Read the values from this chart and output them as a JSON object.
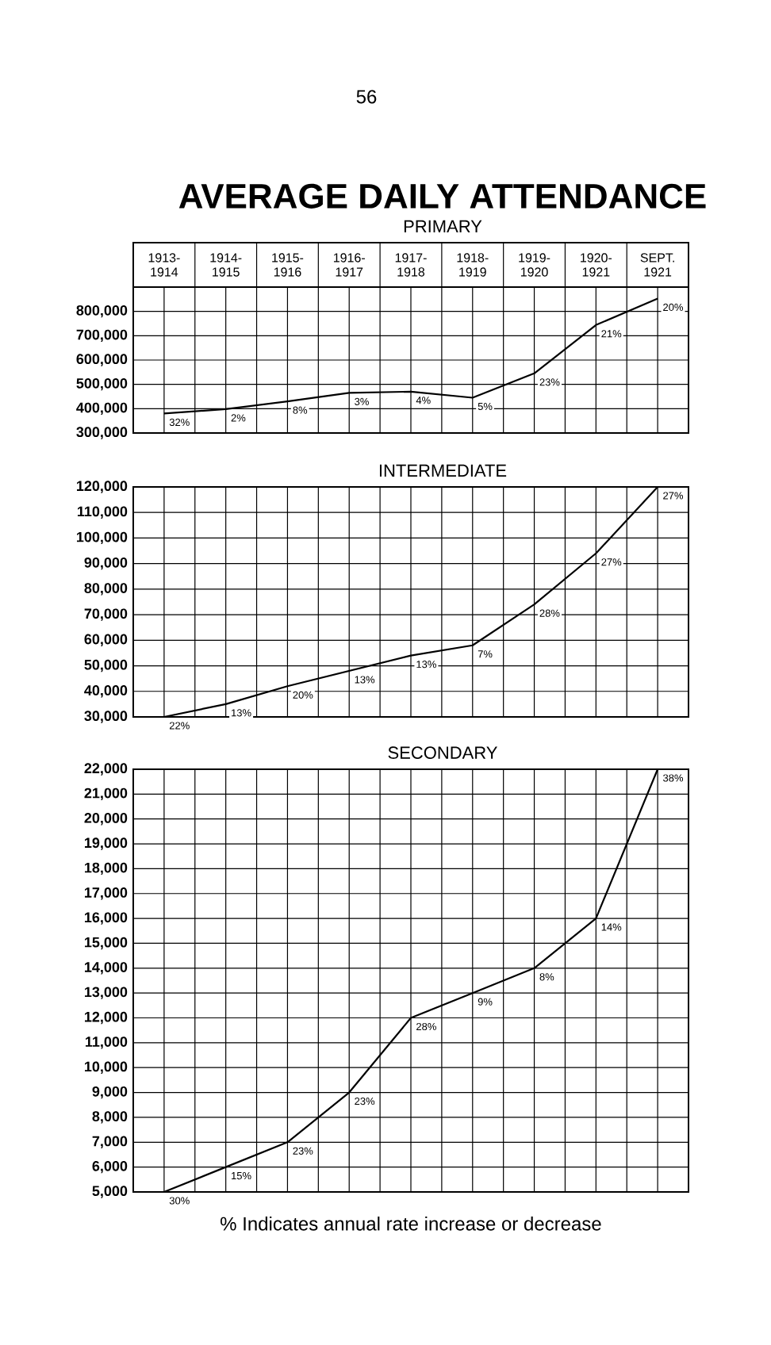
{
  "chart_data": [
    {
      "type": "line",
      "title": "AVERAGE DAILY ATTENDANCE",
      "subtitle": "PRIMARY",
      "categories": [
        "1913-1914",
        "1914-1915",
        "1915-1916",
        "1916-1917",
        "1917-1918",
        "1918-1919",
        "1919-1920",
        "1920-1921",
        "SEPT. 1921"
      ],
      "values": [
        380000,
        398000,
        430000,
        465000,
        470000,
        445000,
        545000,
        744000,
        853000
      ],
      "color": "#000000",
      "ylim": [
        300000,
        900000
      ],
      "yticks": [
        {
          "value": 300000,
          "label": "300,000"
        },
        {
          "value": 400000,
          "label": "400,000"
        },
        {
          "value": 500000,
          "label": "500,000"
        },
        {
          "value": 600000,
          "label": "600,000"
        },
        {
          "value": 700000,
          "label": "700,000"
        },
        {
          "value": 800000,
          "label": "800,000"
        },
        {
          "value": 900000,
          "label": null
        }
      ],
      "grid": true,
      "annotations": [
        "56",
        {
          "text": "32%",
          "x": "1913-1914",
          "y": 380000
        },
        {
          "text": "2%",
          "x": "1914-1915",
          "y": 398000
        },
        {
          "text": "8%",
          "x": "1915-1916",
          "y": 430000
        },
        {
          "text": "3%",
          "x": "1916-1917",
          "y": 465000
        },
        {
          "text": "4%",
          "x": "1917-1918",
          "y": 470000
        },
        {
          "text": "5%",
          "x": "1918-1919",
          "y": 445000
        },
        {
          "text": "23%",
          "x": "1919-1920",
          "y": 545000
        },
        {
          "text": "21%",
          "x": "1920-1921",
          "y": 744000
        },
        {
          "text": "20%",
          "x": "SEPT. 1921",
          "y": 853000
        }
      ]
    },
    {
      "type": "line",
      "title": "INTERMEDIATE",
      "categories": [
        "1913-1914",
        "1914-1915",
        "1915-1916",
        "1916-1917",
        "1917-1918",
        "1918-1919",
        "1919-1920",
        "1920-1921",
        "SEPT. 1921"
      ],
      "values": [
        30000,
        35000,
        42000,
        48000,
        54000,
        58000,
        74000,
        94000,
        120000
      ],
      "color": "#000000",
      "ylim": [
        30000,
        120000
      ],
      "yticks": [
        {
          "value": 30000,
          "label": "30,000"
        },
        {
          "value": 40000,
          "label": "40,000"
        },
        {
          "value": 50000,
          "label": "50,000"
        },
        {
          "value": 60000,
          "label": "60,000"
        },
        {
          "value": 70000,
          "label": "70,000"
        },
        {
          "value": 80000,
          "label": "80,000"
        },
        {
          "value": 90000,
          "label": "90,000"
        },
        {
          "value": 100000,
          "label": "100,000"
        },
        {
          "value": 110000,
          "label": "110,000"
        },
        {
          "value": 120000,
          "label": "120,000"
        }
      ],
      "grid": true,
      "tick_labels": "y",
      "annotations": [
        {
          "text": "22%",
          "x": "1913-1914",
          "y": 30000
        },
        {
          "text": "13%",
          "x": "1914-1915",
          "y": 35000
        },
        {
          "text": "20%",
          "x": "1915-1916",
          "y": 42000
        },
        {
          "text": "13%",
          "x": "1916-1917",
          "y": 48000
        },
        {
          "text": "13%",
          "x": "1917-1918",
          "y": 54000
        },
        {
          "text": "7%",
          "x": "1918-1919",
          "y": 58000
        },
        {
          "text": "28%",
          "x": "1919-1920",
          "y": 74000
        },
        {
          "text": "27%",
          "x": "1920-1921",
          "y": 94000
        },
        {
          "text": "27%",
          "x": "SEPT. 1921",
          "y": 120000
        }
      ]
    },
    {
      "type": "line",
      "title": "SECONDARY",
      "categories": [
        "1913-1914",
        "1914-1915",
        "1915-1916",
        "1916-1917",
        "1917-1918",
        "1918-1919",
        "1919-1920",
        "1920-1921",
        "SEPT. 1921"
      ],
      "values": [
        5000,
        6000,
        7000,
        9000,
        12000,
        13000,
        14000,
        16000,
        22000
      ],
      "color": "#000000",
      "ylim": [
        5000,
        22000
      ],
      "yticks": [
        {
          "value": 5000,
          "label": "5,000"
        },
        {
          "value": 6000,
          "label": "6,000"
        },
        {
          "value": 7000,
          "label": "7,000"
        },
        {
          "value": 8000,
          "label": "8,000"
        },
        {
          "value": 9000,
          "label": "9,000"
        },
        {
          "value": 10000,
          "label": "10,000"
        },
        {
          "value": 11000,
          "label": "11,000"
        },
        {
          "value": 12000,
          "label": "12,000"
        },
        {
          "value": 13000,
          "label": "13,000"
        },
        {
          "value": 14000,
          "label": "14,000"
        },
        {
          "value": 15000,
          "label": "15,000"
        },
        {
          "value": 16000,
          "label": "16,000"
        },
        {
          "value": 17000,
          "label": "17,000"
        },
        {
          "value": 18000,
          "label": "18,000"
        },
        {
          "value": 19000,
          "label": "19,000"
        },
        {
          "value": 20000,
          "label": "20,000"
        },
        {
          "value": 21000,
          "label": "21,000"
        },
        {
          "value": 22000,
          "label": "22,000"
        }
      ],
      "grid": true,
      "tick_labels": "y",
      "annotations": [
        {
          "text": "30%",
          "x": "1913-1914",
          "y": 5000
        },
        {
          "text": "15%",
          "x": "1914-1915",
          "y": 6000
        },
        {
          "text": "23%",
          "x": "1915-1916",
          "y": 7000
        },
        {
          "text": "23%",
          "x": "1916-1917",
          "y": 9000
        },
        {
          "text": "28%",
          "x": "1917-1918",
          "y": 12000
        },
        {
          "text": "9%",
          "x": "1918-1919",
          "y": 13000
        },
        {
          "text": "8%",
          "x": "1919-1920",
          "y": 14000
        },
        {
          "text": "14%",
          "x": "1920-1921",
          "y": 16000
        },
        {
          "text": "38%",
          "x": "SEPT. 1921",
          "y": 22000
        },
        "% Indicates annual rate increase or decrease"
      ]
    }
  ]
}
